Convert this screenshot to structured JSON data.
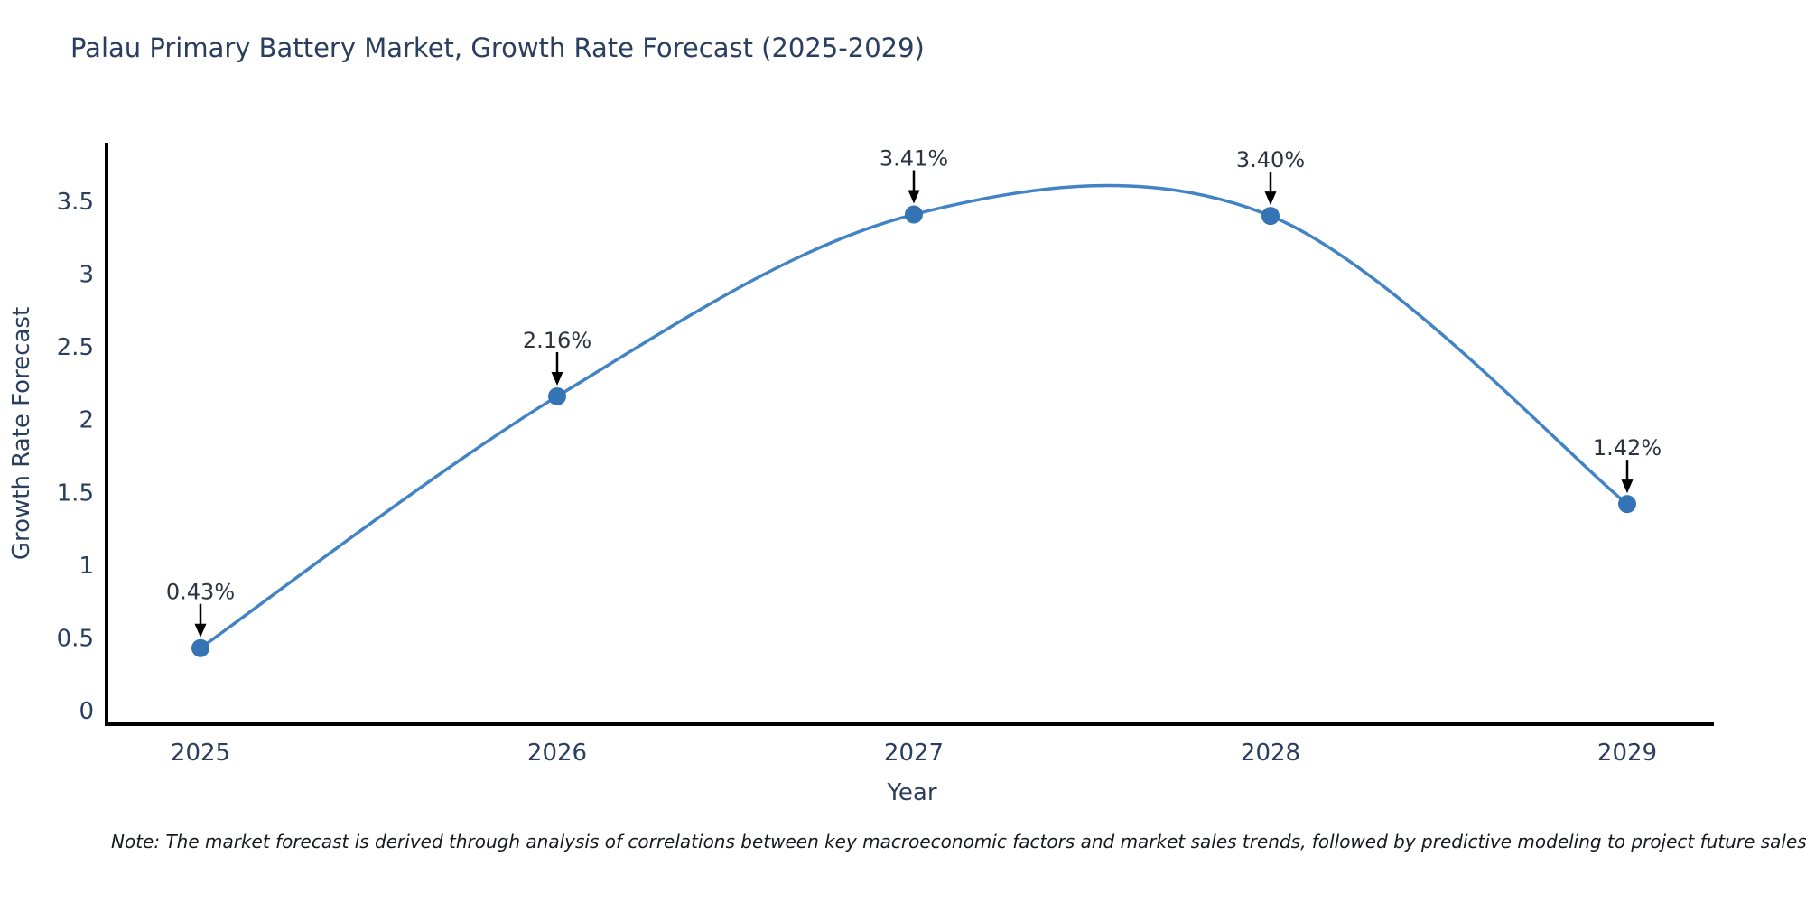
{
  "title": "Palau Primary Battery Market, Growth Rate Forecast (2025-2029)",
  "note": "Note: The market forecast is derived through analysis of correlations between key macroeconomic factors and market sales trends, followed by predictive modeling to project future sales",
  "chart_data": {
    "type": "line",
    "title": "Palau Primary Battery Market, Growth Rate Forecast (2025-2029)",
    "x": [
      "2025",
      "2026",
      "2027",
      "2028",
      "2029"
    ],
    "values": [
      0.43,
      2.16,
      3.41,
      3.4,
      1.42
    ],
    "point_labels": [
      "0.43%",
      "2.16%",
      "3.41%",
      "3.40%",
      "1.42%"
    ],
    "xlabel": "Year",
    "ylabel": "Growth Rate Forecast",
    "yticks": [
      0,
      0.5,
      1,
      1.5,
      2,
      2.5,
      3,
      3.5
    ],
    "ytick_labels": [
      "0",
      "0.5",
      "1",
      "1.5",
      "2",
      "2.5",
      "3",
      "3.5"
    ],
    "ylim": [
      -0.09,
      3.9
    ],
    "line_shape": "spline",
    "grid": false,
    "legend": "none",
    "colors": {
      "line": "#4183c4",
      "marker": "#3474b5",
      "axis": "#000000",
      "title_text": "#2a3f5f",
      "tick_text": "#2a3f5f",
      "annotation_text": "#2d3340",
      "arrow": "#000000"
    }
  }
}
